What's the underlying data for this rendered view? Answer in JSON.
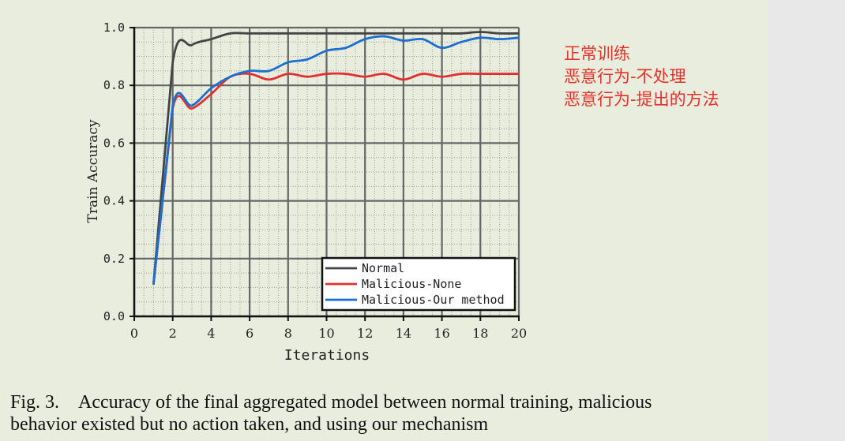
{
  "chart_data": {
    "type": "line",
    "xlabel": "Iterations",
    "ylabel": "Train Accuracy",
    "xlim": [
      0,
      20
    ],
    "ylim": [
      0.0,
      1.0
    ],
    "x_ticks": [
      "0",
      "2",
      "4",
      "6",
      "8",
      "10",
      "12",
      "14",
      "16",
      "18",
      "20"
    ],
    "y_ticks": [
      "0.0",
      "0.2",
      "0.4",
      "0.6",
      "0.8",
      "1.0"
    ],
    "grid": true,
    "legend_position": "lower-right",
    "x": [
      1,
      2,
      3,
      4,
      5,
      6,
      7,
      8,
      9,
      10,
      11,
      12,
      13,
      14,
      15,
      16,
      17,
      18,
      19,
      20
    ],
    "series": [
      {
        "name": "Normal",
        "color": "#444444",
        "values": [
          0.11,
          0.88,
          0.94,
          0.96,
          0.98,
          0.98,
          0.98,
          0.98,
          0.98,
          0.98,
          0.98,
          0.98,
          0.98,
          0.98,
          0.98,
          0.98,
          0.98,
          0.985,
          0.98,
          0.98
        ]
      },
      {
        "name": "Malicious-None",
        "color": "#e03030",
        "values": [
          0.11,
          0.72,
          0.72,
          0.77,
          0.83,
          0.84,
          0.82,
          0.84,
          0.83,
          0.84,
          0.84,
          0.83,
          0.84,
          0.82,
          0.84,
          0.83,
          0.84,
          0.84,
          0.84,
          0.84
        ]
      },
      {
        "name": "Malicious-Our method",
        "color": "#1a6fd0",
        "values": [
          0.11,
          0.73,
          0.73,
          0.79,
          0.83,
          0.85,
          0.85,
          0.88,
          0.89,
          0.92,
          0.93,
          0.96,
          0.97,
          0.955,
          0.96,
          0.93,
          0.95,
          0.965,
          0.96,
          0.965
        ]
      }
    ]
  },
  "annotations": [
    "正常训练",
    "恶意行为-不处理",
    "恶意行为-提出的方法"
  ],
  "caption": {
    "label": "Fig. 3.",
    "text": "Accuracy of the final aggregated model between normal training, malicious behavior existed but no action taken, and using our mechanism"
  }
}
